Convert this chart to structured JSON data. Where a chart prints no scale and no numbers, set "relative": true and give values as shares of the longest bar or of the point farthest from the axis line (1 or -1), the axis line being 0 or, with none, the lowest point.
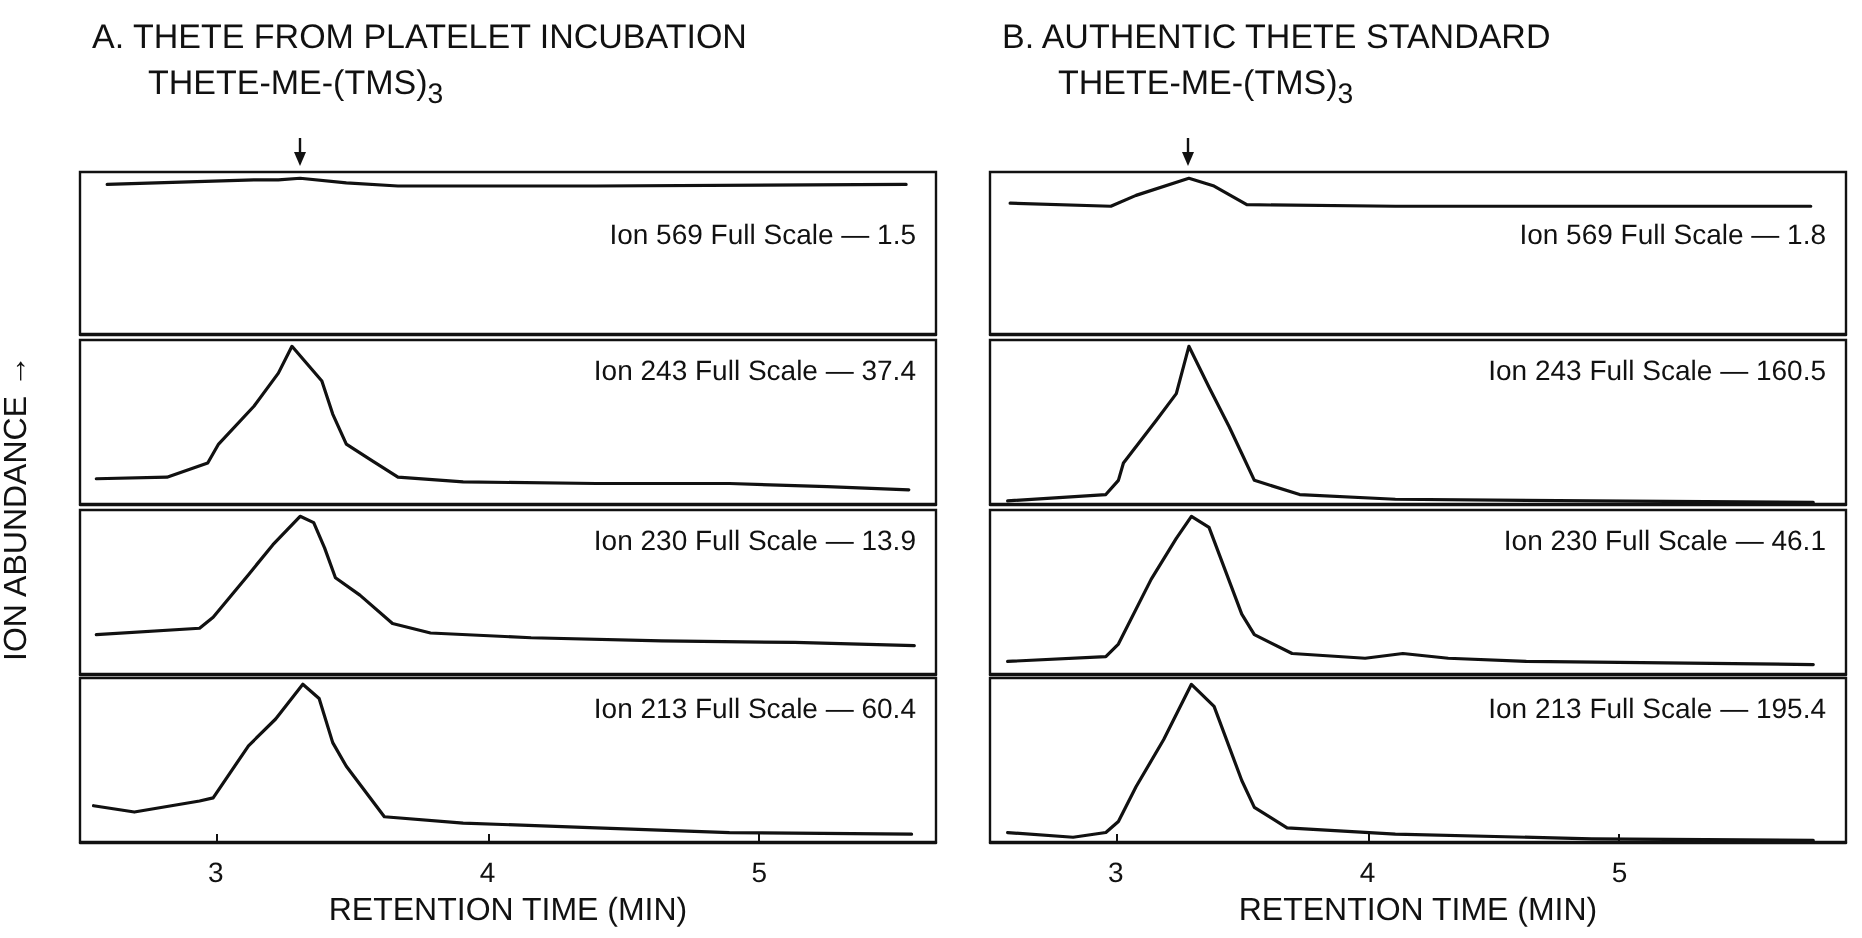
{
  "chart_data": [
    {
      "type": "line",
      "relative": true,
      "title": "A. THETE FROM PLATELET INCUBATION",
      "subtitle": "THETE-ME-(TMS)$_{3}$",
      "annotations": [
        "Ion 569 Full Scale — 1.5"
      ],
      "tick_labels": false,
      "xlim": [
        2.5,
        5.65
      ],
      "xticks": [
        3,
        4,
        5
      ],
      "color": "#111111",
      "x": [
        2.6,
        3.14,
        3.23,
        3.31,
        3.48,
        3.67,
        4.4,
        5.54
      ],
      "values": [
        0.96,
        0.99,
        0.99,
        1.0,
        0.97,
        0.95,
        0.95,
        0.96
      ]
    },
    {
      "type": "line",
      "relative": true,
      "ylabel": "ION ABUNDANCE →",
      "annotations": [
        "Ion 243 Full Scale — 37.4"
      ],
      "tick_labels": false,
      "xlim": [
        2.5,
        5.65
      ],
      "xticks": [
        3,
        4,
        5
      ],
      "color": "#111111",
      "x": [
        2.56,
        2.82,
        2.97,
        3.01,
        3.14,
        3.23,
        3.28,
        3.39,
        3.43,
        3.48,
        3.57,
        3.67,
        3.91,
        4.4,
        4.89,
        5.25,
        5.55
      ],
      "values": [
        0.16,
        0.17,
        0.26,
        0.38,
        0.62,
        0.83,
        1.0,
        0.78,
        0.57,
        0.38,
        0.28,
        0.17,
        0.14,
        0.13,
        0.13,
        0.11,
        0.09
      ]
    },
    {
      "type": "line",
      "relative": true,
      "annotations": [
        "Ion 230 Full Scale — 13.9"
      ],
      "tick_labels": false,
      "xlim": [
        2.5,
        5.65
      ],
      "xticks": [
        3,
        4,
        5
      ],
      "color": "#111111",
      "x": [
        2.56,
        2.94,
        2.99,
        3.12,
        3.21,
        3.31,
        3.36,
        3.4,
        3.44,
        3.53,
        3.65,
        3.79,
        4.16,
        4.64,
        5.13,
        5.57
      ],
      "values": [
        0.25,
        0.29,
        0.36,
        0.63,
        0.82,
        1.0,
        0.96,
        0.8,
        0.61,
        0.5,
        0.32,
        0.26,
        0.23,
        0.21,
        0.2,
        0.18
      ]
    },
    {
      "type": "line",
      "relative": true,
      "xlabel": "RETENTION TIME (MIN)",
      "annotations": [
        "Ion 213 Full Scale — 60.4"
      ],
      "tick_labels": "x",
      "xlim": [
        2.5,
        5.65
      ],
      "xticks": [
        3,
        4,
        5
      ],
      "color": "#111111",
      "x": [
        2.55,
        2.7,
        2.94,
        2.99,
        3.12,
        3.22,
        3.32,
        3.38,
        3.43,
        3.48,
        3.62,
        3.91,
        4.4,
        4.89,
        5.56
      ],
      "values": [
        0.23,
        0.19,
        0.26,
        0.28,
        0.61,
        0.78,
        1.0,
        0.91,
        0.63,
        0.48,
        0.16,
        0.12,
        0.09,
        0.06,
        0.05
      ]
    },
    {
      "type": "line",
      "relative": true,
      "title": "B. AUTHENTIC THETE STANDARD",
      "subtitle": "THETE-ME-(TMS)$_{3}$",
      "annotations": [
        "Ion 569 Full Scale — 1.8"
      ],
      "tick_labels": false,
      "xlim": [
        2.5,
        5.9
      ],
      "xticks": [
        3,
        4,
        5
      ],
      "color": "#111111",
      "x": [
        2.58,
        2.98,
        3.08,
        3.29,
        3.39,
        3.52,
        4.11,
        5.76
      ],
      "values": [
        0.84,
        0.82,
        0.89,
        1.0,
        0.95,
        0.83,
        0.82,
        0.82
      ]
    },
    {
      "type": "line",
      "relative": true,
      "annotations": [
        "Ion 243 Full Scale — 160.5"
      ],
      "tick_labels": false,
      "xlim": [
        2.5,
        5.9
      ],
      "xticks": [
        3,
        4,
        5
      ],
      "color": "#111111",
      "x": [
        2.57,
        2.96,
        3.01,
        3.03,
        3.16,
        3.24,
        3.29,
        3.37,
        3.45,
        3.5,
        3.55,
        3.73,
        4.11,
        4.89,
        5.77
      ],
      "values": [
        0.02,
        0.06,
        0.15,
        0.26,
        0.53,
        0.7,
        1.0,
        0.74,
        0.49,
        0.32,
        0.15,
        0.06,
        0.03,
        0.02,
        0.01
      ]
    },
    {
      "type": "line",
      "relative": true,
      "annotations": [
        "Ion 230 Full Scale — 46.1"
      ],
      "tick_labels": false,
      "xlim": [
        2.5,
        5.9
      ],
      "xticks": [
        3,
        4,
        5
      ],
      "color": "#111111",
      "x": [
        2.57,
        2.96,
        3.01,
        3.14,
        3.24,
        3.3,
        3.37,
        3.5,
        3.55,
        3.7,
        3.99,
        4.14,
        4.32,
        4.63,
        5.77
      ],
      "values": [
        0.08,
        0.11,
        0.19,
        0.6,
        0.86,
        1.0,
        0.93,
        0.38,
        0.25,
        0.13,
        0.1,
        0.13,
        0.1,
        0.08,
        0.06
      ]
    },
    {
      "type": "line",
      "relative": true,
      "xlabel": "RETENTION TIME (MIN)",
      "annotations": [
        "Ion 213 Full Scale — 195.4"
      ],
      "tick_labels": "x",
      "xlim": [
        2.5,
        5.9
      ],
      "xticks": [
        3,
        4,
        5
      ],
      "color": "#111111",
      "x": [
        2.57,
        2.83,
        2.96,
        3.01,
        3.08,
        3.19,
        3.3,
        3.39,
        3.5,
        3.55,
        3.68,
        4.11,
        4.89,
        5.77
      ],
      "values": [
        0.06,
        0.03,
        0.06,
        0.13,
        0.35,
        0.65,
        1.0,
        0.86,
        0.39,
        0.22,
        0.09,
        0.05,
        0.02,
        0.01
      ]
    }
  ]
}
